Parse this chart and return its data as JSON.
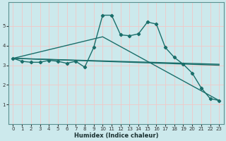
{
  "xlabel": "Humidex (Indice chaleur)",
  "background_color": "#cce9ec",
  "grid_color": "#f0c8c8",
  "line_color": "#1a6e6a",
  "xlim": [
    -0.5,
    23.5
  ],
  "ylim": [
    0,
    6.2
  ],
  "yticks": [
    1,
    2,
    3,
    4,
    5
  ],
  "xticks": [
    0,
    1,
    2,
    3,
    4,
    5,
    6,
    7,
    8,
    9,
    10,
    11,
    12,
    13,
    14,
    15,
    16,
    17,
    18,
    19,
    20,
    21,
    22,
    23
  ],
  "line1_x": [
    0,
    1,
    2,
    3,
    4,
    5,
    6,
    7,
    8,
    9,
    10,
    11,
    12,
    13,
    14,
    15,
    16,
    17,
    18,
    19,
    20,
    21,
    22,
    23
  ],
  "line1_y": [
    3.35,
    3.2,
    3.15,
    3.15,
    3.25,
    3.2,
    3.1,
    3.2,
    2.9,
    3.9,
    5.55,
    5.55,
    4.55,
    4.5,
    4.6,
    5.2,
    5.1,
    3.9,
    3.4,
    3.05,
    2.6,
    1.85,
    1.3,
    1.2
  ],
  "line2_x": [
    0,
    23
  ],
  "line2_y": [
    3.35,
    3.05
  ],
  "line3_x": [
    0,
    23
  ],
  "line3_y": [
    3.35,
    3.0
  ],
  "line4_x": [
    0,
    10,
    23
  ],
  "line4_y": [
    3.35,
    4.45,
    1.2
  ]
}
